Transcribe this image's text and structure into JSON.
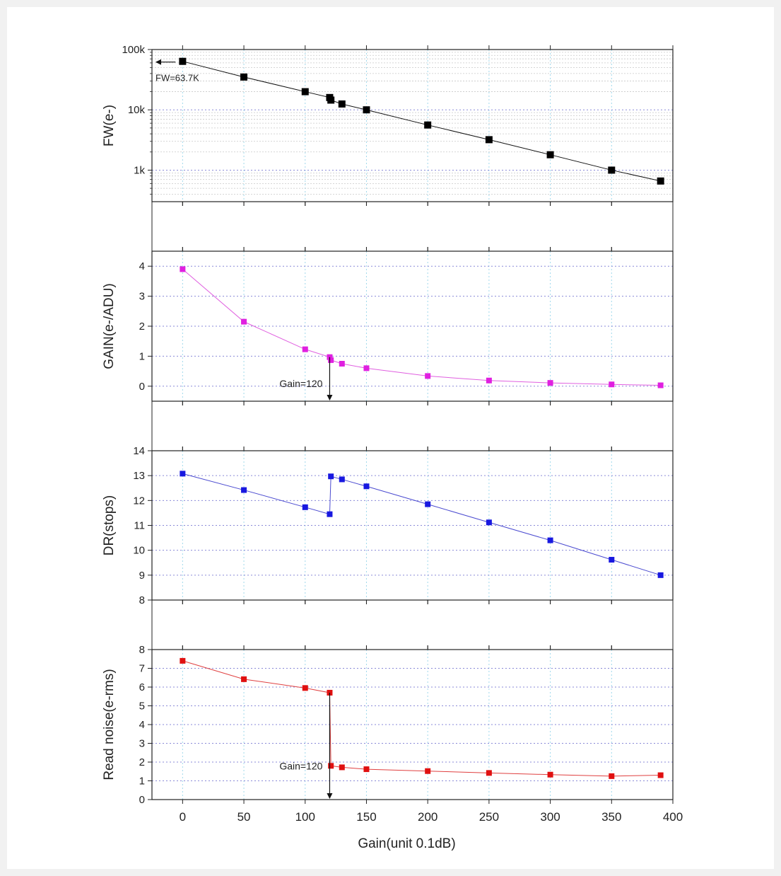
{
  "chart_data": [
    {
      "id": "fw",
      "type": "line",
      "scale": "log",
      "ylabel": "FW(e-)",
      "ylim": [
        300,
        100000
      ],
      "yticks": [
        1000,
        10000,
        100000
      ],
      "ytick_labels": [
        "1k",
        "10k",
        "100k"
      ],
      "color": "#111111",
      "marker_color": "#000000",
      "grid": true,
      "x": [
        0,
        50,
        100,
        120,
        121,
        130,
        150,
        200,
        250,
        300,
        350,
        390
      ],
      "values": [
        63700,
        35000,
        20000,
        16000,
        14500,
        12500,
        10000,
        5600,
        3200,
        1800,
        1000,
        660
      ],
      "annotations": [
        {
          "text": "FW=63.7K",
          "x": 0,
          "y": 63700,
          "arrow": "left"
        }
      ]
    },
    {
      "id": "gain",
      "type": "line",
      "scale": "linear",
      "ylabel": "GAIN(e-/ADU)",
      "ylim": [
        -0.5,
        4.5
      ],
      "yticks": [
        0,
        1,
        2,
        3,
        4
      ],
      "ytick_labels": [
        "0",
        "1",
        "2",
        "3",
        "4"
      ],
      "color": "#e060e0",
      "marker_color": "#e020e0",
      "grid": true,
      "x": [
        0,
        50,
        100,
        120,
        121,
        130,
        150,
        200,
        250,
        300,
        350,
        390
      ],
      "values": [
        3.9,
        2.15,
        1.23,
        0.97,
        0.87,
        0.75,
        0.6,
        0.34,
        0.19,
        0.11,
        0.06,
        0.03
      ],
      "annotations": [
        {
          "text": "Gain=120",
          "x": 120,
          "y": 0.97,
          "arrow": "down"
        }
      ]
    },
    {
      "id": "dr",
      "type": "line",
      "scale": "linear",
      "ylabel": "DR(stops)",
      "ylim": [
        8,
        14
      ],
      "yticks": [
        8,
        9,
        10,
        11,
        12,
        13,
        14
      ],
      "ytick_labels": [
        "8",
        "9",
        "10",
        "11",
        "12",
        "13",
        "14"
      ],
      "color": "#4a4ad0",
      "marker_color": "#1818e0",
      "grid": true,
      "x": [
        0,
        50,
        100,
        120,
        121,
        130,
        150,
        200,
        250,
        300,
        350,
        390
      ],
      "values": [
        13.08,
        12.42,
        11.73,
        11.45,
        12.97,
        12.85,
        12.57,
        11.85,
        11.12,
        10.4,
        9.62,
        9.0
      ],
      "annotations": []
    },
    {
      "id": "noise",
      "type": "line",
      "scale": "linear",
      "ylabel": "Read noise(e-rms)",
      "ylim": [
        0,
        8
      ],
      "yticks": [
        0,
        1,
        2,
        3,
        4,
        5,
        6,
        7,
        8
      ],
      "ytick_labels": [
        "0",
        "1",
        "2",
        "3",
        "4",
        "5",
        "6",
        "7",
        "8"
      ],
      "color": "#e04040",
      "marker_color": "#e01010",
      "grid": true,
      "x": [
        0,
        50,
        100,
        120,
        121,
        130,
        150,
        200,
        250,
        300,
        350,
        390
      ],
      "values": [
        7.4,
        6.42,
        5.95,
        5.7,
        1.8,
        1.72,
        1.62,
        1.52,
        1.42,
        1.33,
        1.25,
        1.3
      ],
      "annotations": [
        {
          "text": "Gain=120",
          "x": 120,
          "y": 5.7,
          "arrow": "down"
        }
      ]
    }
  ],
  "x_axis": {
    "label": "Gain(unit 0.1dB)",
    "xlim": [
      -25,
      400
    ],
    "ticks": [
      0,
      50,
      100,
      150,
      200,
      250,
      300,
      350,
      400
    ],
    "tick_labels": [
      "0",
      "50",
      "100",
      "150",
      "200",
      "250",
      "300",
      "350",
      "400"
    ]
  }
}
